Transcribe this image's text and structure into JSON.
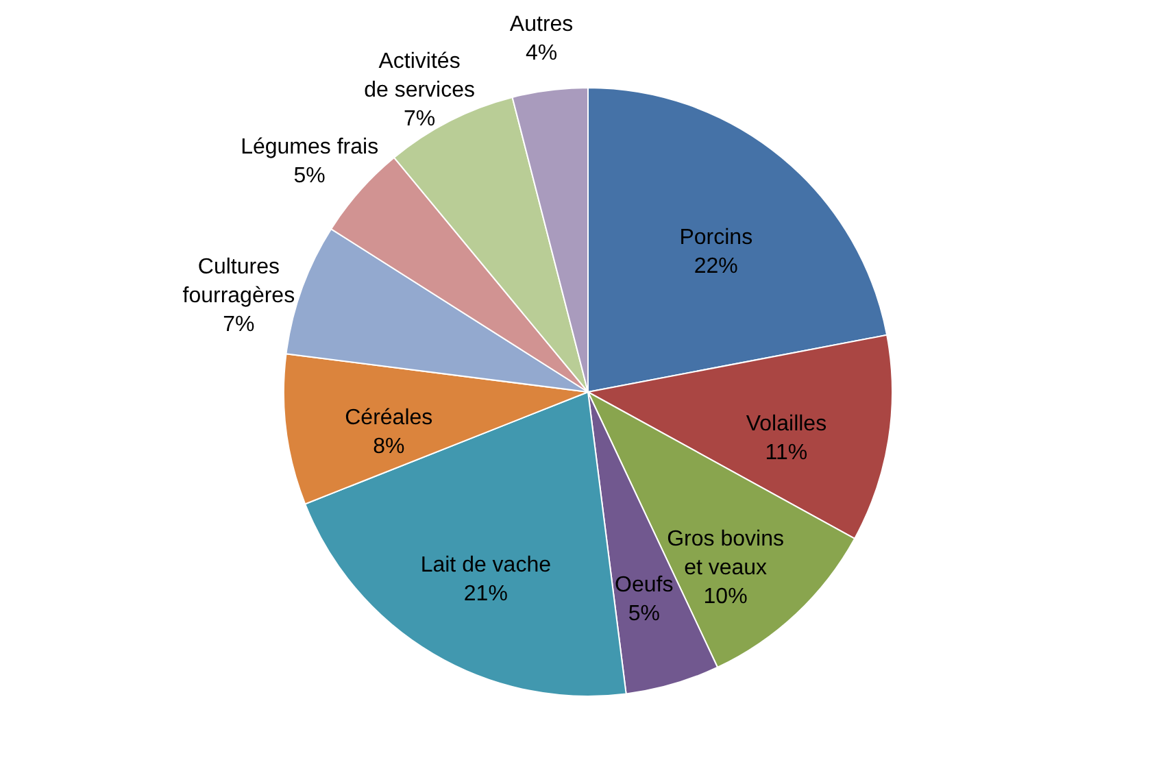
{
  "chart_data": {
    "type": "pie",
    "categories": [
      "Porcins",
      "Volailles",
      "Gros bovins et veaux",
      "Oeufs",
      "Lait de vache",
      "Céréales",
      "Cultures fourragères",
      "Légumes frais",
      "Activités de services",
      "Autres"
    ],
    "values": [
      22,
      11,
      10,
      5,
      21,
      8,
      7,
      5,
      7,
      4
    ],
    "value_labels": [
      "22%",
      "11%",
      "10%",
      "5%",
      "21%",
      "8%",
      "7%",
      "5%",
      "7%",
      "4%"
    ],
    "colors": [
      "#4572a7",
      "#aa4643",
      "#89a54e",
      "#71588f",
      "#4198af",
      "#db843d",
      "#93a9cf",
      "#d19392",
      "#b9cd96",
      "#a99bbd"
    ],
    "legend": false
  }
}
